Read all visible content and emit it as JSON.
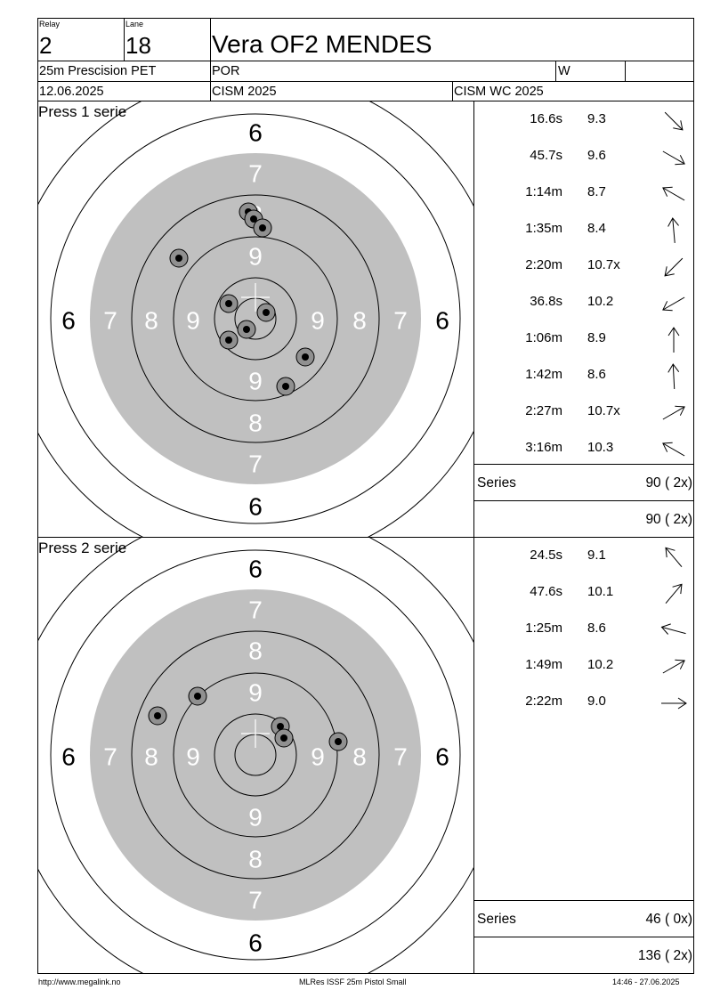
{
  "header": {
    "relay_label": "Relay",
    "relay_value": "2",
    "lane_label": "Lane",
    "lane_value": "18",
    "athlete_name": "Vera OF2 MENDES",
    "event": "25m Prescision PET",
    "nation": "POR",
    "gender": "W",
    "date": "12.06.2025",
    "competition": "CISM 2025",
    "championship": "CISM WC 2025"
  },
  "target_rings": {
    "outer_labels": [
      "6"
    ],
    "inner_labels": [
      "7",
      "8",
      "9"
    ]
  },
  "series": [
    {
      "title": "Press 1 serie",
      "shots": [
        {
          "time": "16.6s",
          "score": "9.3",
          "direction": "arrow-down-right-icon",
          "angle": 135,
          "dx": -8,
          "dy": -120
        },
        {
          "time": "45.7s",
          "score": "9.6",
          "direction": "arrow-down-right-icon",
          "angle": 120,
          "dx": -2,
          "dy": -112
        },
        {
          "time": "1:14m",
          "score": "8.7",
          "direction": "arrow-up-left-icon",
          "angle": -60,
          "dx": 8,
          "dy": -102
        },
        {
          "time": "1:35m",
          "score": "8.4",
          "direction": "arrow-up-icon",
          "angle": -5,
          "dx": -86,
          "dy": -68
        },
        {
          "time": "2:20m",
          "score": "10.7x",
          "direction": "arrow-down-left-icon",
          "angle": -135,
          "dx": -30,
          "dy": -17
        },
        {
          "time": "36.8s",
          "score": "10.2",
          "direction": "arrow-down-left-icon",
          "angle": -120,
          "dx": 12,
          "dy": -7
        },
        {
          "time": "1:06m",
          "score": "8.9",
          "direction": "arrow-up-icon",
          "angle": 0,
          "dx": -10,
          "dy": 12
        },
        {
          "time": "1:42m",
          "score": "8.6",
          "direction": "arrow-up-icon",
          "angle": -3,
          "dx": -30,
          "dy": 24
        },
        {
          "time": "2:27m",
          "score": "10.7x",
          "direction": "arrow-up-right-icon",
          "angle": 60,
          "dx": 56,
          "dy": 43
        },
        {
          "time": "3:16m",
          "score": "10.3",
          "direction": "arrow-up-left-icon",
          "angle": -60,
          "dx": 34,
          "dy": 76
        }
      ],
      "series_label": "Series",
      "series_total": "90 ( 2x)",
      "running_total": "90 ( 2x)"
    },
    {
      "title": "Press 2 serie",
      "shots": [
        {
          "time": "24.5s",
          "score": "9.1",
          "direction": "arrow-up-left-icon",
          "angle": -40,
          "dx": -110,
          "dy": -44
        },
        {
          "time": "47.6s",
          "score": "10.1",
          "direction": "arrow-up-right-icon",
          "angle": 40,
          "dx": -65,
          "dy": -66
        },
        {
          "time": "1:25m",
          "score": "8.6",
          "direction": "arrow-left-icon",
          "angle": -75,
          "dx": 28,
          "dy": -32
        },
        {
          "time": "1:49m",
          "score": "10.2",
          "direction": "arrow-up-right-icon",
          "angle": 60,
          "dx": 32,
          "dy": -19
        },
        {
          "time": "2:22m",
          "score": "9.0",
          "direction": "arrow-right-icon",
          "angle": 90,
          "dx": 93,
          "dy": -15
        }
      ],
      "series_label": "Series",
      "series_total": "46 ( 0x)",
      "running_total": "136 ( 2x)"
    }
  ],
  "footer": {
    "url": "http://www.megalink.no",
    "software": "MLRes ISSF 25m Pistol Small",
    "timestamp": "14:46 - 27.06.2025"
  },
  "colors": {
    "black_ring": "#c0c0c0",
    "shot_outer": "#909090",
    "shot_inner": "#000000"
  }
}
